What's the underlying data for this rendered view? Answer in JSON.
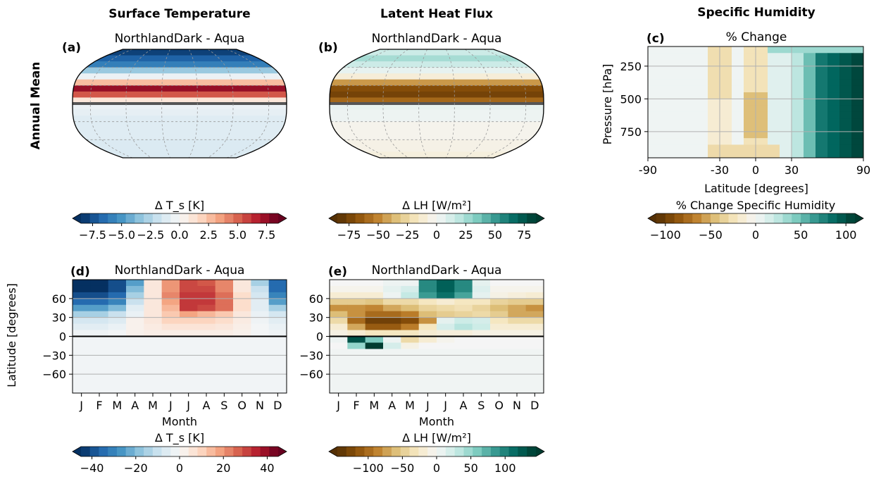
{
  "column_titles": [
    "Surface Temperature",
    "Latent Heat Flux",
    "Specific Humidity"
  ],
  "row_label": "Annual Mean",
  "chart_data": [
    {
      "id": "a",
      "type": "heatmap",
      "projection": "robinson-map",
      "panel_tag": "(a)",
      "title": "NorthlandDark - Aqua",
      "colormap": "RdBu_r",
      "vlim": [
        -8,
        8
      ],
      "zonal_profile": {
        "lat": [
          85,
          75,
          65,
          55,
          45,
          35,
          25,
          15,
          5,
          -5,
          -15,
          -25,
          -35,
          -45,
          -55,
          -65,
          -75,
          -85
        ],
        "values": [
          -7.5,
          -6.5,
          -5.5,
          -3.0,
          -0.5,
          2.5,
          7.0,
          5.0,
          1.0,
          -0.5,
          -0.7,
          -1.0,
          -1.0,
          -1.0,
          -1.0,
          -1.2,
          -1.2,
          -1.2
        ]
      },
      "colorbar": {
        "label": "Δ T_s [K]",
        "ticks": [
          "−7.5",
          "−5.0",
          "−2.5",
          "0.0",
          "2.5",
          "5.0",
          "7.5"
        ],
        "tick_values": [
          -7.5,
          -5,
          -2.5,
          0,
          2.5,
          5,
          7.5
        ],
        "vmin": -8.5,
        "vmax": 8.5
      }
    },
    {
      "id": "b",
      "type": "heatmap",
      "projection": "robinson-map",
      "panel_tag": "(b)",
      "title": "NorthlandDark - Aqua",
      "colormap": "BrBG",
      "vlim": [
        -85,
        85
      ],
      "zonal_profile": {
        "lat": [
          85,
          75,
          65,
          55,
          45,
          35,
          25,
          15,
          5,
          -5,
          -15,
          -25,
          -35,
          -45,
          -55,
          -65,
          -75,
          -85
        ],
        "values": [
          15,
          25,
          15,
          5,
          -10,
          -45,
          -70,
          -75,
          -60,
          5,
          3,
          3,
          -3,
          -3,
          -3,
          -5,
          -5,
          -8
        ]
      },
      "colorbar": {
        "label": "Δ LH [W/m²]",
        "ticks": [
          "−75",
          "−50",
          "−25",
          "0",
          "25",
          "50",
          "75"
        ],
        "tick_values": [
          -75,
          -50,
          -25,
          0,
          25,
          50,
          75
        ],
        "vmin": -85,
        "vmax": 85
      }
    },
    {
      "id": "c",
      "type": "heatmap",
      "panel_tag": "(c)",
      "title": "% Change",
      "colormap": "BrBG",
      "xlabel": "Latitude [degrees]",
      "ylabel": "Pressure [hPa]",
      "x_ticks": [
        "-90",
        "-30",
        "0",
        "30",
        "90"
      ],
      "x_tick_values": [
        -90,
        -30,
        0,
        30,
        90
      ],
      "y_ticks": [
        "250",
        "500",
        "750"
      ],
      "y_tick_values": [
        250,
        500,
        750
      ],
      "xlim": [
        -90,
        90
      ],
      "ylim_inverted": [
        950,
        100
      ],
      "lat_centers": [
        -85,
        -75,
        -65,
        -55,
        -45,
        -35,
        -25,
        -15,
        -5,
        5,
        15,
        25,
        35,
        45,
        55,
        65,
        75,
        85
      ],
      "pressure_centers": [
        125,
        175,
        225,
        275,
        325,
        375,
        425,
        475,
        525,
        575,
        625,
        675,
        725,
        775,
        825,
        875,
        925
      ],
      "colorbar": {
        "label": "% Change Specific Humidity",
        "ticks": [
          "−100",
          "−50",
          "0",
          "50",
          "100"
        ],
        "tick_values": [
          -100,
          -50,
          0,
          50,
          100
        ],
        "vmin": -110,
        "vmax": 110
      }
    },
    {
      "id": "d",
      "type": "heatmap",
      "panel_tag": "(d)",
      "title": "NorthlandDark - Aqua",
      "colormap": "RdBu_r",
      "xlabel": "Month",
      "ylabel": "Latitude [degrees]",
      "months": [
        "J",
        "F",
        "M",
        "A",
        "M",
        "J",
        "J",
        "A",
        "S",
        "O",
        "N",
        "D"
      ],
      "y_ticks": [
        "60",
        "30",
        "0",
        "−30",
        "−60"
      ],
      "y_tick_values": [
        60,
        30,
        0,
        -30,
        -60
      ],
      "ylim": [
        -90,
        90
      ],
      "lat_bands": [
        85,
        75,
        65,
        55,
        45,
        35,
        25,
        15,
        5
      ],
      "north_values": [
        [
          -45,
          -45,
          -40,
          -25,
          5,
          20,
          30,
          28,
          22,
          5,
          -15,
          -35
        ],
        [
          -45,
          -45,
          -40,
          -20,
          5,
          20,
          30,
          30,
          22,
          5,
          -10,
          -35
        ],
        [
          -40,
          -40,
          -35,
          -15,
          5,
          22,
          32,
          32,
          25,
          8,
          -8,
          -30
        ],
        [
          -35,
          -35,
          -30,
          -10,
          5,
          18,
          32,
          32,
          25,
          8,
          -5,
          -25
        ],
        [
          -25,
          -25,
          -20,
          -5,
          5,
          15,
          32,
          30,
          25,
          8,
          -5,
          -15
        ],
        [
          -15,
          -15,
          -10,
          -3,
          5,
          12,
          18,
          15,
          12,
          5,
          -3,
          -8
        ],
        [
          -8,
          -8,
          -6,
          2,
          5,
          10,
          10,
          10,
          8,
          4,
          -2,
          -5
        ],
        [
          -5,
          -5,
          -3,
          2,
          4,
          6,
          6,
          6,
          5,
          3,
          -1,
          -3
        ],
        [
          -2,
          -2,
          -1,
          2,
          3,
          3,
          3,
          3,
          3,
          2,
          -1,
          -2
        ]
      ],
      "south_value": -1.5,
      "colorbar": {
        "label": "Δ T_s [K]",
        "ticks": [
          "−40",
          "−20",
          "0",
          "20",
          "40"
        ],
        "tick_values": [
          -40,
          -20,
          0,
          20,
          40
        ],
        "vmin": -45,
        "vmax": 45
      }
    },
    {
      "id": "e",
      "type": "heatmap",
      "panel_tag": "(e)",
      "title": "NorthlandDark - Aqua",
      "colormap": "BrBG",
      "xlabel": "Month",
      "months": [
        "J",
        "F",
        "M",
        "A",
        "M",
        "J",
        "J",
        "A",
        "S",
        "O",
        "N",
        "D"
      ],
      "y_ticks": [
        "60",
        "30",
        "0",
        "−30",
        "−60"
      ],
      "y_tick_values": [
        60,
        30,
        0,
        -30,
        -60
      ],
      "ylim": [
        -90,
        90
      ],
      "lat_bands": [
        85,
        75,
        65,
        55,
        45,
        35,
        25,
        15,
        5,
        -5,
        -15
      ],
      "values": [
        [
          0,
          0,
          0,
          5,
          5,
          95,
          120,
          95,
          10,
          0,
          0,
          0
        ],
        [
          -5,
          -5,
          -5,
          10,
          20,
          95,
          120,
          95,
          15,
          -5,
          -5,
          -5
        ],
        [
          -20,
          -20,
          -20,
          5,
          30,
          85,
          110,
          80,
          10,
          -10,
          -15,
          -20
        ],
        [
          -50,
          -50,
          -55,
          -40,
          -40,
          -30,
          -20,
          -30,
          -30,
          -45,
          -50,
          -50
        ],
        [
          -80,
          -80,
          -85,
          -70,
          -60,
          -45,
          -40,
          -35,
          -45,
          -60,
          -70,
          -80
        ],
        [
          -60,
          -80,
          -100,
          -100,
          -90,
          -60,
          -50,
          -45,
          -40,
          -50,
          -70,
          -70
        ],
        [
          -40,
          -100,
          -130,
          -130,
          -120,
          -80,
          10,
          25,
          20,
          -30,
          -40,
          -40
        ],
        [
          -20,
          -70,
          -110,
          -110,
          -90,
          -30,
          20,
          35,
          25,
          -20,
          -20,
          -20
        ],
        [
          -10,
          -20,
          -30,
          -30,
          -30,
          -20,
          -15,
          -15,
          -10,
          -10,
          -10,
          -10
        ],
        [
          5,
          130,
          60,
          5,
          -40,
          -20,
          -5,
          0,
          0,
          0,
          0,
          0
        ],
        [
          0,
          50,
          150,
          20,
          -10,
          0,
          0,
          0,
          0,
          0,
          0,
          0
        ]
      ],
      "south_value": 3,
      "colorbar": {
        "label": "Δ LH [W/m²]",
        "ticks": [
          "−100",
          "−50",
          "0",
          "50",
          "100"
        ],
        "tick_values": [
          -100,
          -50,
          0,
          50,
          100
        ],
        "vmin": -145,
        "vmax": 145
      }
    }
  ]
}
